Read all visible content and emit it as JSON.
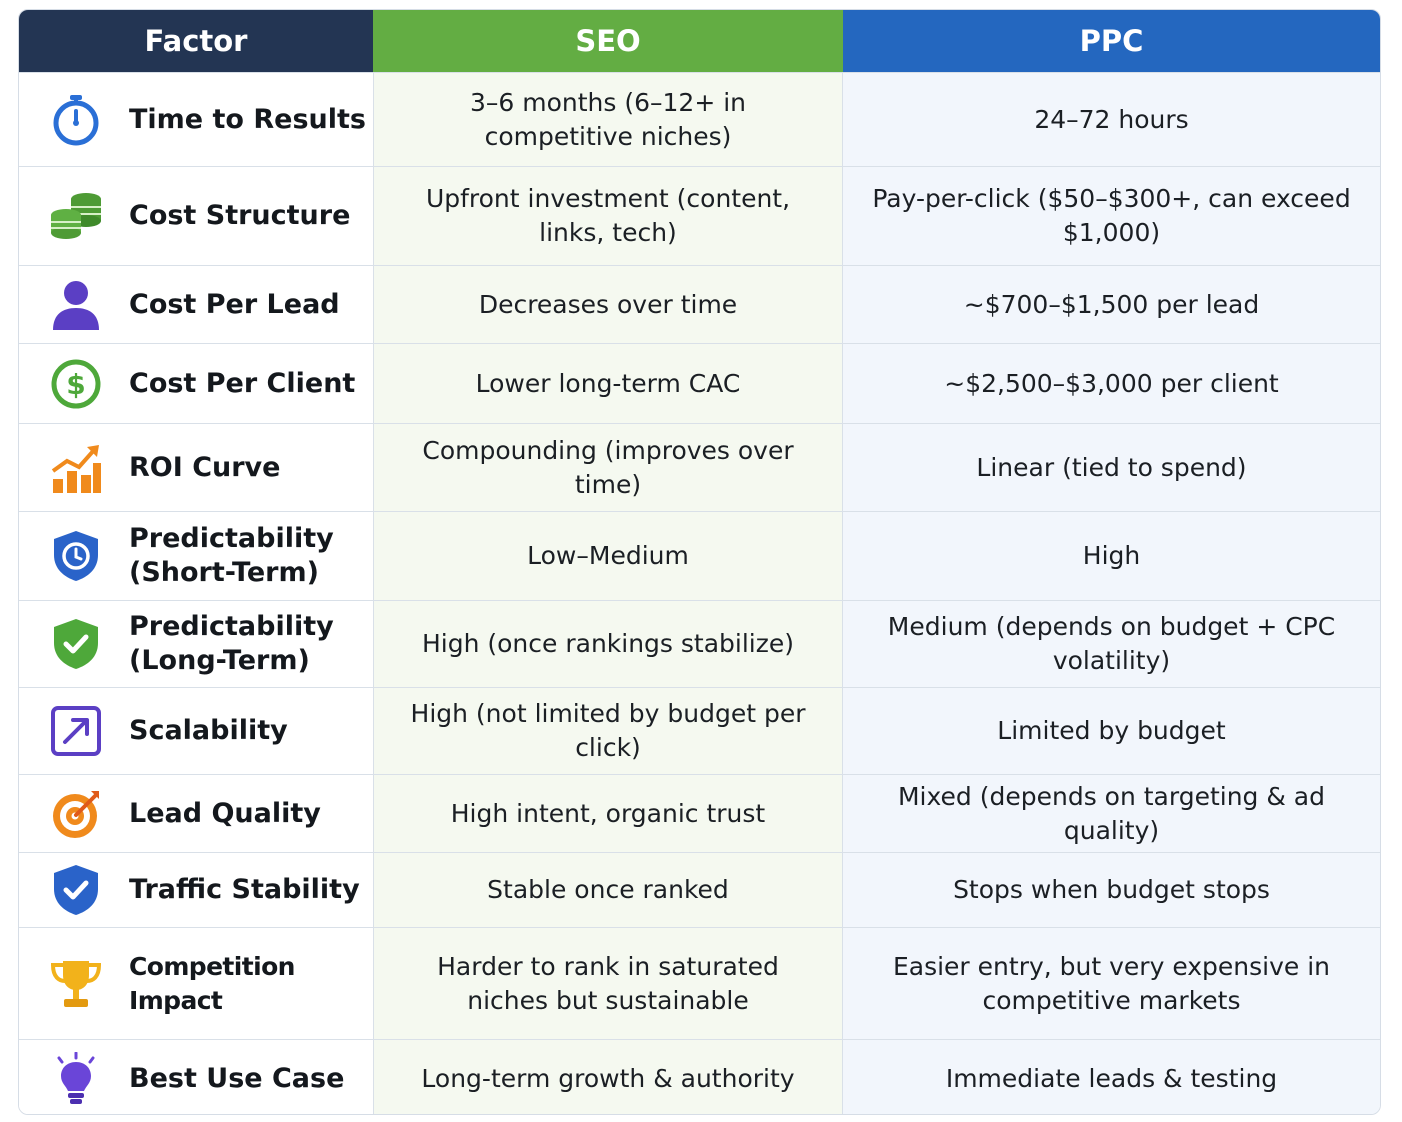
{
  "header": {
    "factor": "Factor",
    "seo": "SEO",
    "ppc": "PPC"
  },
  "colors": {
    "factor_header": "#233553",
    "seo_header": "#63ad43",
    "ppc_header": "#2467bf"
  },
  "rows": [
    {
      "icon": "stopwatch-icon",
      "factor": "Time to Results",
      "seo": "3–6 months (6–12+ in competitive niches)",
      "ppc": "24–72 hours"
    },
    {
      "icon": "coin-stack-icon",
      "factor": "Cost Structure",
      "seo": "Upfront investment (content, links, tech)",
      "ppc": "Pay-per-click ($50–$300+, can exceed $1,000)"
    },
    {
      "icon": "person-icon",
      "factor": "Cost Per Lead",
      "seo": "Decreases over time",
      "ppc": "~$700–$1,500 per lead"
    },
    {
      "icon": "dollar-circle-icon",
      "factor": "Cost Per Client",
      "seo": "Lower long-term CAC",
      "ppc": "~$2,500–$3,000 per client"
    },
    {
      "icon": "growth-chart-icon",
      "factor": "ROI Curve",
      "seo": "Compounding (improves over time)",
      "ppc": "Linear (tied to spend)"
    },
    {
      "icon": "shield-clock-icon",
      "factor": "Predictability (Short-Term)",
      "seo": "Low–Medium",
      "ppc": "High"
    },
    {
      "icon": "shield-check-green-icon",
      "factor": "Predictability (Long-Term)",
      "seo": "High (once rankings stabilize)",
      "ppc": "Medium (depends on budget + CPC volatility)"
    },
    {
      "icon": "expand-arrow-icon",
      "factor": "Scalability",
      "seo": "High (not limited by budget per click)",
      "ppc": "Limited by budget"
    },
    {
      "icon": "target-icon",
      "factor": "Lead Quality",
      "seo": "High intent, organic trust",
      "ppc": "Mixed (depends on targeting & ad quality)"
    },
    {
      "icon": "shield-check-blue-icon",
      "factor": "Traffic Stability",
      "seo": "Stable once ranked",
      "ppc": "Stops when budget stops"
    },
    {
      "icon": "trophy-icon",
      "factor": "Competition Impact",
      "seo": "Harder to rank in saturated niches but sustainable",
      "ppc": "Easier entry, but very expensive in competitive markets"
    },
    {
      "icon": "lightbulb-icon",
      "factor": "Best Use Case",
      "seo": "Long-term growth & authority",
      "ppc": "Immediate leads & testing"
    }
  ]
}
